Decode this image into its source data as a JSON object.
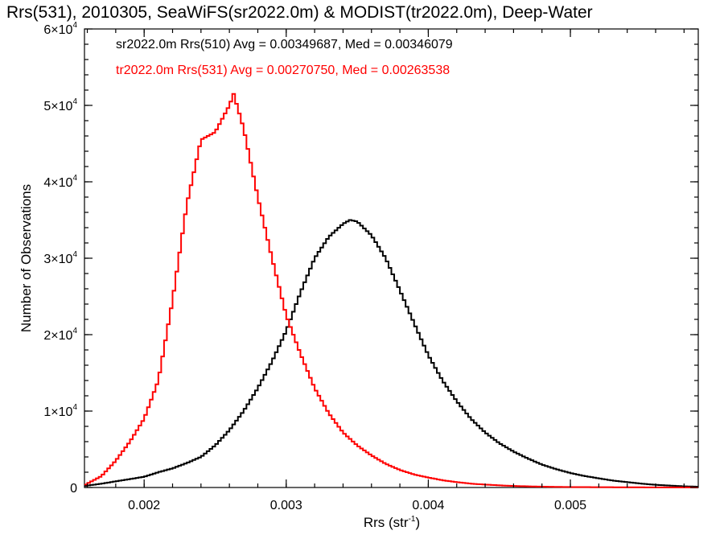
{
  "chart_data": {
    "type": "line",
    "title": "Rrs(531), 2010305, SeaWiFS(sr2022.0m) & MODIST(tr2022.0m), Deep-Water",
    "xlabel": "Rrs (str",
    "xlabel_sup": "-1",
    "xlabel_end": ")",
    "ylabel": "Number of Observations",
    "xlim": [
      0.00158,
      0.0059
    ],
    "ylim": [
      0,
      60000
    ],
    "grid": false,
    "legend_position": "top-left",
    "x_ticks": [
      {
        "value": 0.002,
        "label": "0.002"
      },
      {
        "value": 0.003,
        "label": "0.003"
      },
      {
        "value": 0.004,
        "label": "0.004"
      },
      {
        "value": 0.005,
        "label": "0.005"
      }
    ],
    "x_minor_step": 0.0002,
    "y_ticks": [
      {
        "value": 0,
        "mant": "0",
        "exp": ""
      },
      {
        "value": 10000,
        "mant": "1×10",
        "exp": "4"
      },
      {
        "value": 20000,
        "mant": "2×10",
        "exp": "4"
      },
      {
        "value": 30000,
        "mant": "3×10",
        "exp": "4"
      },
      {
        "value": 40000,
        "mant": "4×10",
        "exp": "4"
      },
      {
        "value": 50000,
        "mant": "5×10",
        "exp": "4"
      },
      {
        "value": 60000,
        "mant": "6×10",
        "exp": "4"
      }
    ],
    "y_minor_step": 2000,
    "bin_width": 2e-05,
    "series": [
      {
        "name": "sr2022.0m Rrs(510) Avg = 0.00349687, Med = 0.00346079",
        "color": "#000000",
        "style": "step",
        "x": [
          0.00158,
          0.0017,
          0.0018,
          0.0019,
          0.002,
          0.0021,
          0.0022,
          0.0023,
          0.0024,
          0.0025,
          0.0026,
          0.0027,
          0.0028,
          0.0029,
          0.003,
          0.0031,
          0.0032,
          0.0033,
          0.0034,
          0.00345,
          0.0035,
          0.0036,
          0.0037,
          0.0038,
          0.0039,
          0.004,
          0.0041,
          0.0042,
          0.0043,
          0.0044,
          0.0045,
          0.0046,
          0.0047,
          0.0048,
          0.0049,
          0.005,
          0.0051,
          0.0052,
          0.0053,
          0.0054,
          0.0055,
          0.0056,
          0.0057,
          0.0058,
          0.0059
        ],
        "y": [
          200,
          500,
          800,
          1100,
          1400,
          2000,
          2500,
          3200,
          4000,
          5500,
          7500,
          10000,
          13000,
          16500,
          20500,
          25500,
          30000,
          32800,
          34500,
          35000,
          34800,
          33000,
          30000,
          25800,
          21500,
          17300,
          14000,
          11300,
          9000,
          7200,
          5800,
          4700,
          3800,
          3000,
          2400,
          1900,
          1500,
          1200,
          900,
          700,
          500,
          350,
          250,
          150,
          100
        ]
      },
      {
        "name": "tr2022.0m Rrs(531) Avg = 0.00270750, Med = 0.00263538",
        "color": "#ff0000",
        "style": "step",
        "x": [
          0.00158,
          0.0017,
          0.0018,
          0.0019,
          0.002,
          0.0021,
          0.0022,
          0.0023,
          0.0024,
          0.0025,
          0.0026,
          0.00263,
          0.0027,
          0.0028,
          0.0029,
          0.003,
          0.0031,
          0.0032,
          0.0033,
          0.0034,
          0.0035,
          0.0036,
          0.0037,
          0.0038,
          0.0039,
          0.004,
          0.0041,
          0.0042,
          0.0043,
          0.0044,
          0.0045,
          0.0046,
          0.0047,
          0.0048,
          0.0049,
          0.005,
          0.0052,
          0.0054,
          0.0056,
          0.0058,
          0.0059
        ],
        "y": [
          300,
          1500,
          3500,
          6000,
          9000,
          14000,
          24500,
          37000,
          45500,
          46500,
          50000,
          51500,
          47000,
          38000,
          30000,
          22500,
          17500,
          13000,
          9700,
          7200,
          5500,
          4200,
          3100,
          2300,
          1700,
          1300,
          950,
          700,
          500,
          380,
          280,
          200,
          150,
          110,
          80,
          60,
          40,
          25,
          15,
          10,
          5
        ]
      }
    ]
  }
}
